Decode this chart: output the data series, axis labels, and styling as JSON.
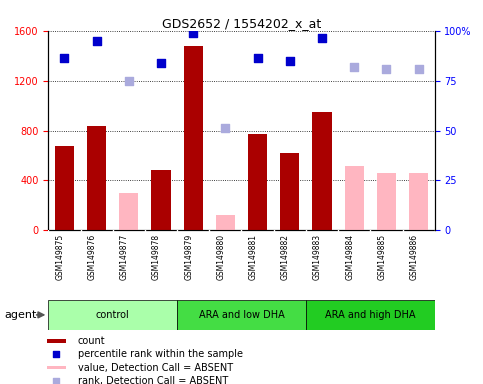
{
  "title": "GDS2652 / 1554202_x_at",
  "samples": [
    "GSM149875",
    "GSM149876",
    "GSM149877",
    "GSM149878",
    "GSM149879",
    "GSM149880",
    "GSM149881",
    "GSM149882",
    "GSM149883",
    "GSM149884",
    "GSM149885",
    "GSM149886"
  ],
  "count_values": [
    680,
    840,
    null,
    480,
    1480,
    null,
    770,
    620,
    950,
    null,
    null,
    null
  ],
  "absent_value": [
    null,
    null,
    300,
    null,
    null,
    120,
    null,
    null,
    null,
    520,
    460,
    460
  ],
  "percentile_values": [
    1380,
    1520,
    null,
    1340,
    1580,
    null,
    1380,
    1360,
    1540,
    null,
    null,
    null
  ],
  "absent_rank": [
    null,
    null,
    1200,
    null,
    null,
    820,
    null,
    null,
    null,
    1310,
    1290,
    1290
  ],
  "ylim_left": [
    0,
    1600
  ],
  "ylim_right": [
    0,
    100
  ],
  "yticks_left": [
    0,
    400,
    800,
    1200,
    1600
  ],
  "yticks_right": [
    0,
    25,
    50,
    75,
    100
  ],
  "bar_color_present": "#AA0000",
  "bar_color_absent": "#FFB6C1",
  "dot_color_present": "#0000CC",
  "dot_color_absent": "#AAAADD",
  "sample_bg": "#C8C8C8",
  "group_colors": [
    "#AAFFAA",
    "#44DD44",
    "#22CC22"
  ],
  "group_labels": [
    "control",
    "ARA and low DHA",
    "ARA and high DHA"
  ],
  "group_ranges": [
    [
      0,
      4
    ],
    [
      4,
      8
    ],
    [
      8,
      12
    ]
  ],
  "legend_items": [
    {
      "label": "count",
      "color": "#AA0000",
      "type": "bar"
    },
    {
      "label": "percentile rank within the sample",
      "color": "#0000CC",
      "type": "dot"
    },
    {
      "label": "value, Detection Call = ABSENT",
      "color": "#FFB6C1",
      "type": "bar"
    },
    {
      "label": "rank, Detection Call = ABSENT",
      "color": "#AAAADD",
      "type": "dot"
    }
  ]
}
